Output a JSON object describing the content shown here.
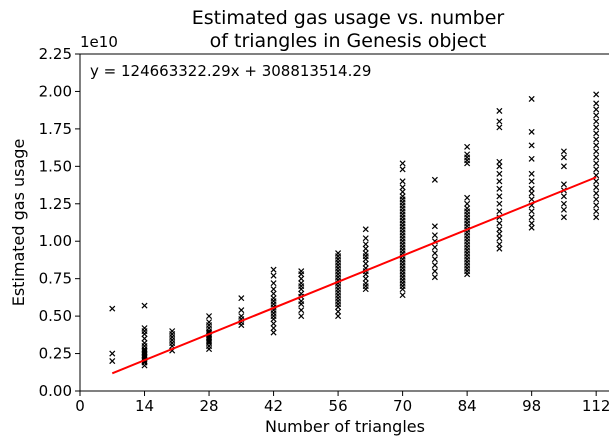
{
  "chart_data": {
    "type": "scatter",
    "title_lines": [
      "Estimated gas usage vs. number",
      "of triangles in Genesis object"
    ],
    "xlabel": "Number of triangles",
    "ylabel": "Estimated gas usage",
    "y_offset_label": "1e10",
    "annotation": "y = 124663322.29x + 308813514.29",
    "xlim": [
      0,
      115
    ],
    "ylim": [
      0.0,
      2.25
    ],
    "x_ticks": [
      0,
      14,
      28,
      42,
      56,
      70,
      84,
      98,
      112
    ],
    "y_ticks": [
      0.0,
      0.25,
      0.5,
      0.75,
      1.0,
      1.25,
      1.5,
      1.75,
      2.0,
      2.25
    ],
    "grid": false,
    "marker_color": "#000000",
    "fit_color": "#ff0000",
    "fit_line": {
      "slope_per_unit_e10": 0.0124663322,
      "intercept_e10": 0.0308813514,
      "x_range": [
        7,
        112
      ]
    },
    "columns": [
      {
        "x": 7,
        "y": [
          0.2,
          0.25,
          0.55
        ]
      },
      {
        "x": 14,
        "y": [
          0.17,
          0.19,
          0.2,
          0.21,
          0.22,
          0.23,
          0.24,
          0.25,
          0.26,
          0.27,
          0.28,
          0.3,
          0.32,
          0.35,
          0.38,
          0.4,
          0.42,
          0.57
        ]
      },
      {
        "x": 20,
        "y": [
          0.27,
          0.3,
          0.32,
          0.34,
          0.36,
          0.38,
          0.4
        ]
      },
      {
        "x": 28,
        "y": [
          0.28,
          0.3,
          0.32,
          0.33,
          0.34,
          0.35,
          0.36,
          0.37,
          0.38,
          0.39,
          0.4,
          0.42,
          0.44,
          0.46,
          0.5
        ]
      },
      {
        "x": 35,
        "y": [
          0.44,
          0.46,
          0.48,
          0.5,
          0.54,
          0.62
        ]
      },
      {
        "x": 42,
        "y": [
          0.39,
          0.42,
          0.45,
          0.48,
          0.5,
          0.52,
          0.54,
          0.56,
          0.58,
          0.6,
          0.62,
          0.65,
          0.68,
          0.72,
          0.77,
          0.81
        ]
      },
      {
        "x": 48,
        "y": [
          0.5,
          0.54,
          0.58,
          0.6,
          0.63,
          0.65,
          0.68,
          0.7,
          0.72,
          0.75,
          0.78,
          0.8
        ]
      },
      {
        "x": 56,
        "y": [
          0.5,
          0.53,
          0.56,
          0.58,
          0.6,
          0.62,
          0.64,
          0.66,
          0.68,
          0.7,
          0.72,
          0.74,
          0.76,
          0.78,
          0.8,
          0.82,
          0.84,
          0.86,
          0.88,
          0.9,
          0.92
        ]
      },
      {
        "x": 62,
        "y": [
          0.68,
          0.7,
          0.72,
          0.75,
          0.78,
          0.8,
          0.82,
          0.85,
          0.88,
          0.9,
          0.92,
          0.95,
          0.98,
          1.02,
          1.08
        ]
      },
      {
        "x": 70,
        "y": [
          0.64,
          0.68,
          0.7,
          0.72,
          0.74,
          0.76,
          0.78,
          0.8,
          0.82,
          0.84,
          0.86,
          0.88,
          0.9,
          0.92,
          0.94,
          0.96,
          0.98,
          1.0,
          1.02,
          1.04,
          1.06,
          1.08,
          1.1,
          1.12,
          1.14,
          1.16,
          1.18,
          1.2,
          1.22,
          1.24,
          1.26,
          1.28,
          1.3,
          1.33,
          1.36,
          1.4,
          1.48,
          1.52
        ]
      },
      {
        "x": 77,
        "y": [
          0.76,
          0.8,
          0.84,
          0.88,
          0.92,
          0.96,
          1.0,
          1.04,
          1.1,
          1.41
        ]
      },
      {
        "x": 84,
        "y": [
          0.78,
          0.8,
          0.82,
          0.84,
          0.86,
          0.88,
          0.9,
          0.92,
          0.94,
          0.96,
          0.98,
          1.0,
          1.02,
          1.04,
          1.06,
          1.08,
          1.1,
          1.12,
          1.14,
          1.16,
          1.18,
          1.2,
          1.22,
          1.25,
          1.29,
          1.52,
          1.54,
          1.56,
          1.58,
          1.63
        ]
      },
      {
        "x": 91,
        "y": [
          0.95,
          0.98,
          1.02,
          1.05,
          1.08,
          1.12,
          1.16,
          1.2,
          1.25,
          1.3,
          1.35,
          1.4,
          1.45,
          1.5,
          1.53,
          1.76,
          1.8,
          1.87
        ]
      },
      {
        "x": 98,
        "y": [
          1.09,
          1.12,
          1.16,
          1.2,
          1.24,
          1.28,
          1.32,
          1.35,
          1.4,
          1.45,
          1.55,
          1.64,
          1.73,
          1.95
        ]
      },
      {
        "x": 105,
        "y": [
          1.16,
          1.21,
          1.25,
          1.3,
          1.34,
          1.38,
          1.5,
          1.56,
          1.6
        ]
      },
      {
        "x": 112,
        "y": [
          1.16,
          1.2,
          1.24,
          1.28,
          1.32,
          1.36,
          1.4,
          1.44,
          1.48,
          1.52,
          1.56,
          1.6,
          1.64,
          1.68,
          1.72,
          1.76,
          1.8,
          1.84,
          1.88,
          1.92,
          1.98
        ]
      }
    ]
  }
}
